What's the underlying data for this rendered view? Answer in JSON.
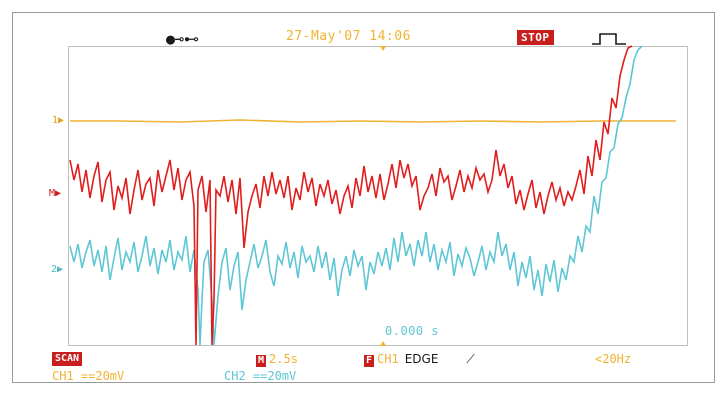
{
  "header": {
    "usb_icon": "usb-icon",
    "datetime": "27-May'07 14:06",
    "run_state": "STOP"
  },
  "markers": {
    "ch1": "1▶",
    "math": "M▶",
    "ch2": "2▶"
  },
  "trigger_time_offset": "0.000 s",
  "status_bar": {
    "acq_mode": "SCAN",
    "timebase_marker": "M",
    "timebase": "2.5s",
    "trigger_source_marker": "F",
    "trigger_source": "CH1",
    "trigger_type": "EDGE",
    "trigger_slope": "⟋",
    "frequency": "<20Hz"
  },
  "channel_bar": {
    "ch1": "CH1  ==20mV",
    "ch2": "CH2  ==20mV"
  },
  "colors": {
    "ch1_trace": "#f2b233",
    "ch2_trace": "#4cb8c8",
    "math_trace": "#e01e1e",
    "accent_red": "#c81e1e"
  }
}
